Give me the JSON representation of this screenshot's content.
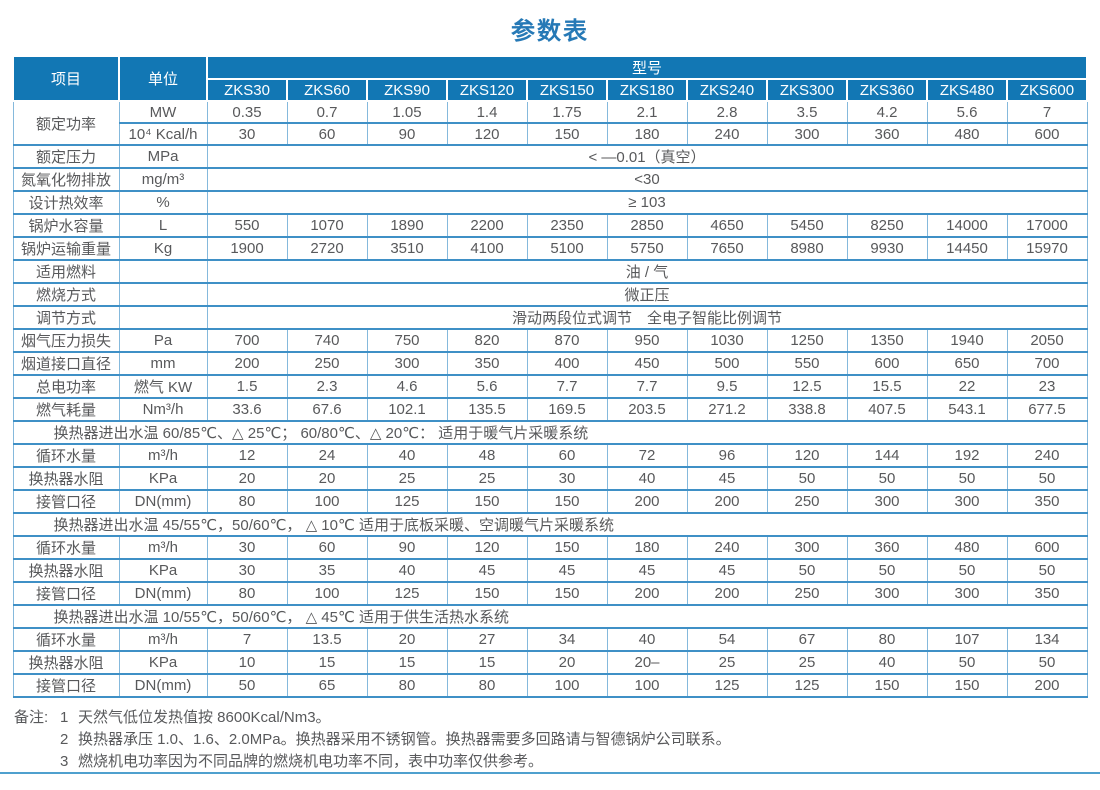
{
  "title": "参数表",
  "colors": {
    "header_bg": "#1277b4",
    "title_blue": "#2679b6",
    "line_blue": "#3f90c6",
    "text_gray": "#58595b"
  },
  "header": {
    "item_label": "项目",
    "unit_label": "单位",
    "model_label": "型号",
    "models": [
      "ZKS30",
      "ZKS60",
      "ZKS90",
      "ZKS120",
      "ZKS150",
      "ZKS180",
      "ZKS240",
      "ZKS300",
      "ZKS360",
      "ZKS480",
      "ZKS600"
    ]
  },
  "rows": [
    {
      "type": "values",
      "label": "额定功率",
      "label_rowspan": 2,
      "unit": "MW",
      "values": [
        "0.35",
        "0.7",
        "1.05",
        "1.4",
        "1.75",
        "2.1",
        "2.8",
        "3.5",
        "4.2",
        "5.6",
        "7"
      ]
    },
    {
      "type": "values",
      "label": null,
      "unit": "10⁴ Kcal/h",
      "values": [
        "30",
        "60",
        "90",
        "120",
        "150",
        "180",
        "240",
        "300",
        "360",
        "480",
        "600"
      ]
    },
    {
      "type": "span",
      "label": "额定压力",
      "unit": "MPa",
      "value": "< —0.01（真空）"
    },
    {
      "type": "span",
      "label": "氮氧化物排放",
      "unit": "mg/m³",
      "value": "<30"
    },
    {
      "type": "span",
      "label": "设计热效率",
      "unit": "%",
      "value": "≥ 103"
    },
    {
      "type": "values",
      "label": "锅炉水容量",
      "unit": "L",
      "values": [
        "550",
        "1070",
        "1890",
        "2200",
        "2350",
        "2850",
        "4650",
        "5450",
        "8250",
        "14000",
        "17000"
      ]
    },
    {
      "type": "values",
      "label": "锅炉运输重量",
      "unit": "Kg",
      "values": [
        "1900",
        "2720",
        "3510",
        "4100",
        "5100",
        "5750",
        "7650",
        "8980",
        "9930",
        "14450",
        "15970"
      ]
    },
    {
      "type": "span",
      "label": "适用燃料",
      "unit": "",
      "value": "油 / 气"
    },
    {
      "type": "span",
      "label": "燃烧方式",
      "unit": "",
      "value": "微正压"
    },
    {
      "type": "span",
      "label": "调节方式",
      "unit": "",
      "value": "滑动两段位式调节　全电子智能比例调节"
    },
    {
      "type": "values",
      "label": "烟气压力损失",
      "unit": "Pa",
      "values": [
        "700",
        "740",
        "750",
        "820",
        "870",
        "950",
        "1030",
        "1250",
        "1350",
        "1940",
        "2050"
      ]
    },
    {
      "type": "values",
      "label": "烟道接口直径",
      "unit": "mm",
      "values": [
        "200",
        "250",
        "300",
        "350",
        "400",
        "450",
        "500",
        "550",
        "600",
        "650",
        "700"
      ]
    },
    {
      "type": "values",
      "label": "总电功率",
      "unit": "燃气 KW",
      "values": [
        "1.5",
        "2.3",
        "4.6",
        "5.6",
        "7.7",
        "7.7",
        "9.5",
        "12.5",
        "15.5",
        "22",
        "23"
      ]
    },
    {
      "type": "values",
      "label": "燃气耗量",
      "unit": "Nm³/h",
      "values": [
        "33.6",
        "67.6",
        "102.1",
        "135.5",
        "169.5",
        "203.5",
        "271.2",
        "338.8",
        "407.5",
        "543.1",
        "677.5"
      ]
    },
    {
      "type": "section",
      "text": "换热器进出水温 60/85℃、△ 25℃； 60/80℃、△ 20℃： 适用于暖气片采暖系统"
    },
    {
      "type": "values",
      "label": "循环水量",
      "unit": "m³/h",
      "values": [
        "12",
        "24",
        "40",
        "48",
        "60",
        "72",
        "96",
        "120",
        "144",
        "192",
        "240"
      ]
    },
    {
      "type": "values",
      "label": "换热器水阻",
      "unit": "KPa",
      "values": [
        "20",
        "20",
        "25",
        "25",
        "30",
        "40",
        "45",
        "50",
        "50",
        "50",
        "50"
      ]
    },
    {
      "type": "values",
      "label": "接管口径",
      "unit": "DN(mm)",
      "values": [
        "80",
        "100",
        "125",
        "150",
        "150",
        "200",
        "200",
        "250",
        "300",
        "300",
        "350"
      ]
    },
    {
      "type": "section",
      "text": "换热器进出水温 45/55℃，50/60℃， △ 10℃ 适用于底板采暖、空调暖气片采暖系统"
    },
    {
      "type": "values",
      "label": "循环水量",
      "unit": "m³/h",
      "values": [
        "30",
        "60",
        "90",
        "120",
        "150",
        "180",
        "240",
        "300",
        "360",
        "480",
        "600"
      ]
    },
    {
      "type": "values",
      "label": "换热器水阻",
      "unit": "KPa",
      "values": [
        "30",
        "35",
        "40",
        "45",
        "45",
        "45",
        "45",
        "50",
        "50",
        "50",
        "50"
      ]
    },
    {
      "type": "values",
      "label": "接管口径",
      "unit": "DN(mm)",
      "values": [
        "80",
        "100",
        "125",
        "150",
        "150",
        "200",
        "200",
        "250",
        "300",
        "300",
        "350"
      ]
    },
    {
      "type": "section",
      "text": "换热器进出水温 10/55℃，50/60℃， △ 45℃ 适用于供生活热水系统"
    },
    {
      "type": "values",
      "label": "循环水量",
      "unit": "m³/h",
      "values": [
        "7",
        "13.5",
        "20",
        "27",
        "34",
        "40",
        "54",
        "67",
        "80",
        "107",
        "134"
      ]
    },
    {
      "type": "values",
      "label": "换热器水阻",
      "unit": "KPa",
      "values": [
        "10",
        "15",
        "15",
        "15",
        "20",
        "20–",
        "25",
        "25",
        "40",
        "50",
        "50"
      ]
    },
    {
      "type": "values",
      "label": "接管口径",
      "unit": "DN(mm)",
      "values": [
        "50",
        "65",
        "80",
        "80",
        "100",
        "100",
        "125",
        "125",
        "150",
        "150",
        "200"
      ]
    }
  ],
  "notes": {
    "prefix": "备注:",
    "items": [
      {
        "num": "1",
        "text": "天然气低位发热值按 8600Kcal/Nm3。"
      },
      {
        "num": "2",
        "text": "换热器承压 1.0、1.6、2.0MPa。换热器采用不锈钢管。换热器需要多回路请与智德锅炉公司联系。"
      },
      {
        "num": "3",
        "text": "燃烧机电功率因为不同品牌的燃烧机电功率不同，表中功率仅供参考。"
      }
    ]
  }
}
